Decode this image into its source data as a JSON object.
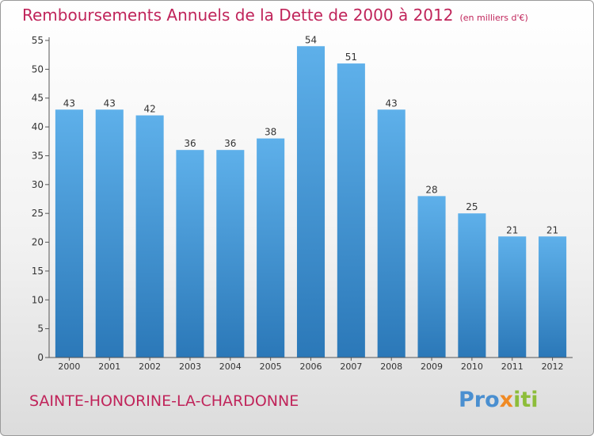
{
  "title": "Remboursements Annuels de la Dette de 2000 à 2012",
  "unit_note": "(en milliers d'€)",
  "commune": "SAINTE-HONORINE-LA-CHARDONNE",
  "logo": {
    "p1": "Pro",
    "p2": "x",
    "p3": "iti"
  },
  "colors": {
    "title": "#c0245a",
    "bar_top": "#5eb0ea",
    "bar_bottom": "#2b78b8",
    "axis": "#555555"
  },
  "chart_data": {
    "type": "bar",
    "title": "Remboursements Annuels de la Dette de 2000 à 2012",
    "subtitle": "(en milliers d'€)",
    "categories": [
      "2000",
      "2001",
      "2002",
      "2003",
      "2004",
      "2005",
      "2006",
      "2007",
      "2008",
      "2009",
      "2010",
      "2011",
      "2012"
    ],
    "values": [
      43,
      43,
      42,
      36,
      36,
      38,
      54,
      51,
      43,
      28,
      25,
      21,
      21
    ],
    "ylim": [
      0,
      55
    ],
    "yticks": [
      0,
      5,
      10,
      15,
      20,
      25,
      30,
      35,
      40,
      45,
      50,
      55
    ],
    "grid": false,
    "data_labels": true,
    "xlabel": "",
    "ylabel": ""
  }
}
